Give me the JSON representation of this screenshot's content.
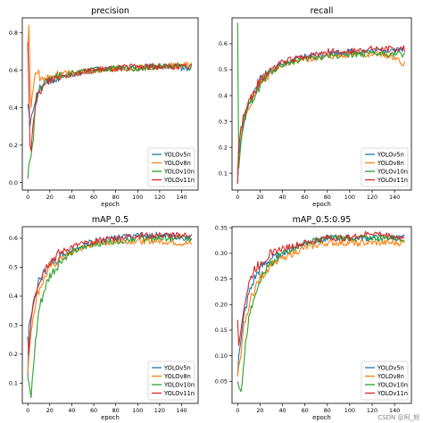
{
  "colors": {
    "YOLOv5n": "#1f77b4",
    "YOLOv8n": "#ff7f0e",
    "YOLOv10n": "#2ca02c",
    "YOLOv11n": "#d62728"
  },
  "watermark": "CSDN @阿_旭",
  "chart_data": [
    {
      "type": "line",
      "title": "precision",
      "xlabel": "epoch",
      "ylabel": "",
      "xlim": [
        -5,
        155
      ],
      "ylim": [
        -0.04,
        0.88
      ],
      "xticks": [
        0,
        20,
        40,
        60,
        80,
        100,
        120,
        140
      ],
      "yticks": [
        0.0,
        0.2,
        0.4,
        0.6,
        0.8
      ],
      "ytick_labels": [
        "0.0",
        "0.2",
        "0.4",
        "0.6",
        "0.8"
      ],
      "legend_loc": "lower right",
      "series": [
        {
          "name": "YOLOv5n",
          "anchors": [
            [
              0,
              0.42
            ],
            [
              1,
              0.38
            ],
            [
              2,
              0.3
            ],
            [
              3,
              0.35
            ],
            [
              5,
              0.4
            ],
            [
              8,
              0.48
            ],
            [
              12,
              0.52
            ],
            [
              20,
              0.55
            ],
            [
              30,
              0.57
            ],
            [
              40,
              0.58
            ],
            [
              60,
              0.6
            ],
            [
              80,
              0.61
            ],
            [
              100,
              0.61
            ],
            [
              120,
              0.62
            ],
            [
              149,
              0.61
            ]
          ]
        },
        {
          "name": "YOLOv8n",
          "anchors": [
            [
              0,
              0.7
            ],
            [
              1,
              0.84
            ],
            [
              2,
              0.55
            ],
            [
              3,
              0.4
            ],
            [
              5,
              0.52
            ],
            [
              8,
              0.6
            ],
            [
              12,
              0.55
            ],
            [
              20,
              0.56
            ],
            [
              30,
              0.58
            ],
            [
              40,
              0.59
            ],
            [
              60,
              0.6
            ],
            [
              80,
              0.61
            ],
            [
              100,
              0.61
            ],
            [
              120,
              0.62
            ],
            [
              149,
              0.63
            ]
          ]
        },
        {
          "name": "YOLOv10n",
          "anchors": [
            [
              0,
              0.02
            ],
            [
              1,
              0.1
            ],
            [
              3,
              0.14
            ],
            [
              5,
              0.25
            ],
            [
              7,
              0.4
            ],
            [
              10,
              0.48
            ],
            [
              14,
              0.52
            ],
            [
              20,
              0.55
            ],
            [
              30,
              0.57
            ],
            [
              40,
              0.58
            ],
            [
              60,
              0.6
            ],
            [
              80,
              0.61
            ],
            [
              100,
              0.61
            ],
            [
              120,
              0.62
            ],
            [
              149,
              0.62
            ]
          ]
        },
        {
          "name": "YOLOv11n",
          "anchors": [
            [
              0,
              0.75
            ],
            [
              1,
              0.5
            ],
            [
              2,
              0.2
            ],
            [
              3,
              0.17
            ],
            [
              5,
              0.3
            ],
            [
              8,
              0.45
            ],
            [
              12,
              0.5
            ],
            [
              20,
              0.55
            ],
            [
              30,
              0.57
            ],
            [
              40,
              0.58
            ],
            [
              60,
              0.6
            ],
            [
              80,
              0.61
            ],
            [
              100,
              0.62
            ],
            [
              120,
              0.62
            ],
            [
              149,
              0.62
            ]
          ]
        }
      ]
    },
    {
      "type": "line",
      "title": "recall",
      "xlabel": "epoch",
      "ylabel": "",
      "xlim": [
        -5,
        155
      ],
      "ylim": [
        0.035,
        0.7
      ],
      "xticks": [
        0,
        20,
        40,
        60,
        80,
        100,
        120,
        140
      ],
      "yticks": [
        0.1,
        0.2,
        0.3,
        0.4,
        0.5,
        0.6
      ],
      "ytick_labels": [
        "0.1",
        "0.2",
        "0.3",
        "0.4",
        "0.5",
        "0.6"
      ],
      "legend_loc": "lower right",
      "series": [
        {
          "name": "YOLOv5n",
          "anchors": [
            [
              0,
              0.06
            ],
            [
              1,
              0.17
            ],
            [
              3,
              0.23
            ],
            [
              6,
              0.3
            ],
            [
              10,
              0.38
            ],
            [
              15,
              0.42
            ],
            [
              20,
              0.46
            ],
            [
              30,
              0.5
            ],
            [
              40,
              0.52
            ],
            [
              60,
              0.55
            ],
            [
              80,
              0.56
            ],
            [
              100,
              0.57
            ],
            [
              120,
              0.57
            ],
            [
              149,
              0.58
            ]
          ]
        },
        {
          "name": "YOLOv8n",
          "anchors": [
            [
              0,
              0.1
            ],
            [
              1,
              0.2
            ],
            [
              3,
              0.26
            ],
            [
              6,
              0.32
            ],
            [
              10,
              0.36
            ],
            [
              15,
              0.4
            ],
            [
              20,
              0.45
            ],
            [
              30,
              0.49
            ],
            [
              40,
              0.52
            ],
            [
              60,
              0.54
            ],
            [
              80,
              0.55
            ],
            [
              100,
              0.56
            ],
            [
              120,
              0.56
            ],
            [
              140,
              0.55
            ],
            [
              149,
              0.52
            ]
          ]
        },
        {
          "name": "YOLOv10n",
          "anchors": [
            [
              0,
              0.68
            ],
            [
              1,
              0.12
            ],
            [
              3,
              0.22
            ],
            [
              6,
              0.3
            ],
            [
              10,
              0.36
            ],
            [
              15,
              0.4
            ],
            [
              20,
              0.44
            ],
            [
              30,
              0.49
            ],
            [
              40,
              0.52
            ],
            [
              60,
              0.54
            ],
            [
              80,
              0.55
            ],
            [
              100,
              0.56
            ],
            [
              120,
              0.56
            ],
            [
              149,
              0.56
            ]
          ]
        },
        {
          "name": "YOLOv11n",
          "anchors": [
            [
              0,
              0.06
            ],
            [
              1,
              0.2
            ],
            [
              3,
              0.28
            ],
            [
              6,
              0.33
            ],
            [
              10,
              0.38
            ],
            [
              15,
              0.42
            ],
            [
              20,
              0.46
            ],
            [
              30,
              0.5
            ],
            [
              40,
              0.53
            ],
            [
              60,
              0.55
            ],
            [
              80,
              0.57
            ],
            [
              100,
              0.57
            ],
            [
              120,
              0.58
            ],
            [
              149,
              0.58
            ]
          ]
        }
      ]
    },
    {
      "type": "line",
      "title": "mAP_0.5",
      "xlabel": "epoch",
      "ylabel": "",
      "xlim": [
        -5,
        155
      ],
      "ylim": [
        0.03,
        0.64
      ],
      "xticks": [
        0,
        20,
        40,
        60,
        80,
        100,
        120,
        140
      ],
      "yticks": [
        0.1,
        0.2,
        0.3,
        0.4,
        0.5,
        0.6
      ],
      "ytick_labels": [
        "0.1",
        "0.2",
        "0.3",
        "0.4",
        "0.5",
        "0.6"
      ],
      "legend_loc": "lower right",
      "series": [
        {
          "name": "YOLOv5n",
          "anchors": [
            [
              0,
              0.12
            ],
            [
              1,
              0.3
            ],
            [
              3,
              0.33
            ],
            [
              6,
              0.4
            ],
            [
              10,
              0.45
            ],
            [
              15,
              0.48
            ],
            [
              20,
              0.51
            ],
            [
              30,
              0.54
            ],
            [
              40,
              0.56
            ],
            [
              60,
              0.59
            ],
            [
              80,
              0.6
            ],
            [
              100,
              0.61
            ],
            [
              120,
              0.61
            ],
            [
              149,
              0.6
            ]
          ]
        },
        {
          "name": "YOLOv8n",
          "anchors": [
            [
              0,
              0.13
            ],
            [
              1,
              0.2
            ],
            [
              3,
              0.28
            ],
            [
              6,
              0.36
            ],
            [
              10,
              0.42
            ],
            [
              15,
              0.46
            ],
            [
              20,
              0.5
            ],
            [
              30,
              0.53
            ],
            [
              40,
              0.55
            ],
            [
              60,
              0.58
            ],
            [
              80,
              0.59
            ],
            [
              100,
              0.59
            ],
            [
              120,
              0.59
            ],
            [
              149,
              0.58
            ]
          ]
        },
        {
          "name": "YOLOv10n",
          "anchors": [
            [
              0,
              0.12
            ],
            [
              1,
              0.1
            ],
            [
              3,
              0.05
            ],
            [
              6,
              0.2
            ],
            [
              10,
              0.35
            ],
            [
              15,
              0.42
            ],
            [
              20,
              0.47
            ],
            [
              30,
              0.52
            ],
            [
              40,
              0.55
            ],
            [
              60,
              0.58
            ],
            [
              80,
              0.59
            ],
            [
              100,
              0.6
            ],
            [
              120,
              0.6
            ],
            [
              149,
              0.6
            ]
          ]
        },
        {
          "name": "YOLOv11n",
          "anchors": [
            [
              0,
              0.26
            ],
            [
              1,
              0.2
            ],
            [
              3,
              0.32
            ],
            [
              6,
              0.4
            ],
            [
              10,
              0.45
            ],
            [
              15,
              0.49
            ],
            [
              20,
              0.52
            ],
            [
              30,
              0.55
            ],
            [
              40,
              0.57
            ],
            [
              60,
              0.59
            ],
            [
              80,
              0.6
            ],
            [
              100,
              0.61
            ],
            [
              120,
              0.61
            ],
            [
              149,
              0.61
            ]
          ]
        }
      ]
    },
    {
      "type": "line",
      "title": "mAP_0.5:0.95",
      "xlabel": "epoch",
      "ylabel": "",
      "xlim": [
        -5,
        155
      ],
      "ylim": [
        0.007,
        0.352
      ],
      "xticks": [
        0,
        20,
        40,
        60,
        80,
        100,
        120,
        140
      ],
      "yticks": [
        0.05,
        0.1,
        0.15,
        0.2,
        0.25,
        0.3,
        0.35
      ],
      "ytick_labels": [
        "0.05",
        "0.10",
        "0.15",
        "0.20",
        "0.25",
        "0.30",
        "0.35"
      ],
      "legend_loc": "lower right",
      "series": [
        {
          "name": "YOLOv5n",
          "anchors": [
            [
              0,
              0.06
            ],
            [
              1,
              0.1
            ],
            [
              3,
              0.13
            ],
            [
              6,
              0.18
            ],
            [
              10,
              0.22
            ],
            [
              15,
              0.25
            ],
            [
              20,
              0.27
            ],
            [
              30,
              0.29
            ],
            [
              40,
              0.3
            ],
            [
              60,
              0.32
            ],
            [
              80,
              0.33
            ],
            [
              100,
              0.33
            ],
            [
              120,
              0.33
            ],
            [
              149,
              0.33
            ]
          ]
        },
        {
          "name": "YOLOv8n",
          "anchors": [
            [
              0,
              0.06
            ],
            [
              1,
              0.08
            ],
            [
              3,
              0.1
            ],
            [
              6,
              0.16
            ],
            [
              10,
              0.2
            ],
            [
              15,
              0.23
            ],
            [
              20,
              0.25
            ],
            [
              30,
              0.28
            ],
            [
              40,
              0.29
            ],
            [
              60,
              0.31
            ],
            [
              80,
              0.32
            ],
            [
              100,
              0.32
            ],
            [
              120,
              0.32
            ],
            [
              149,
              0.32
            ]
          ]
        },
        {
          "name": "YOLOv10n",
          "anchors": [
            [
              0,
              0.05
            ],
            [
              1,
              0.04
            ],
            [
              3,
              0.03
            ],
            [
              6,
              0.1
            ],
            [
              10,
              0.18
            ],
            [
              15,
              0.22
            ],
            [
              20,
              0.25
            ],
            [
              30,
              0.28
            ],
            [
              40,
              0.3
            ],
            [
              60,
              0.32
            ],
            [
              80,
              0.33
            ],
            [
              100,
              0.33
            ],
            [
              120,
              0.33
            ],
            [
              149,
              0.33
            ]
          ]
        },
        {
          "name": "YOLOv11n",
          "anchors": [
            [
              0,
              0.17
            ],
            [
              1,
              0.12
            ],
            [
              3,
              0.15
            ],
            [
              6,
              0.2
            ],
            [
              10,
              0.24
            ],
            [
              15,
              0.27
            ],
            [
              20,
              0.28
            ],
            [
              30,
              0.3
            ],
            [
              40,
              0.31
            ],
            [
              60,
              0.32
            ],
            [
              80,
              0.33
            ],
            [
              100,
              0.33
            ],
            [
              120,
              0.34
            ],
            [
              149,
              0.33
            ]
          ]
        }
      ]
    }
  ]
}
